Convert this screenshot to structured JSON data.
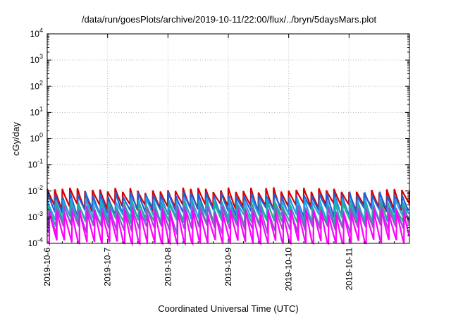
{
  "chart_data": {
    "type": "line",
    "title": "/data/run/goesPlots/archive/2019-10-11/22:00/flux/../bryn/5daysMars.plot",
    "xlabel": "Coordinated Universal Time (UTC)",
    "ylabel": "cGy/day",
    "yscale": "log",
    "ylim": [
      0.0001,
      10000
    ],
    "xlim": [
      "2019-10-06T00:00",
      "2019-10-12T00:00"
    ],
    "grid": true,
    "legend": "none",
    "x_ticks": [
      "2019-10-6",
      "2019-10-7",
      "2019-10-8",
      "2019-10-9",
      "2019-10-10",
      "2019-10-11"
    ],
    "y_ticks": [
      {
        "value": 0.0001,
        "base": "10",
        "exp": "-4"
      },
      {
        "value": 0.001,
        "base": "10",
        "exp": "-3"
      },
      {
        "value": 0.01,
        "base": "10",
        "exp": "-2"
      },
      {
        "value": 0.1,
        "base": "10",
        "exp": "-1"
      },
      {
        "value": 1,
        "base": "10",
        "exp": "0"
      },
      {
        "value": 10,
        "base": "10",
        "exp": "1"
      },
      {
        "value": 100,
        "base": "10",
        "exp": "2"
      },
      {
        "value": 1000,
        "base": "10",
        "exp": "3"
      },
      {
        "value": 10000,
        "base": "10",
        "exp": "4"
      }
    ],
    "series": [
      {
        "color": "#d40000",
        "peak": 0.011,
        "trough": 0.0026,
        "phase": 0.0
      },
      {
        "color": "#1f5fd8",
        "peak": 0.0075,
        "trough": 0.0016,
        "phase": 0.06
      },
      {
        "color": "#26a0e8",
        "peak": 0.0048,
        "trough": 0.0009,
        "phase": 0.12
      },
      {
        "color": "#20b090",
        "peak": 0.003,
        "trough": 0.0006,
        "phase": 0.18
      },
      {
        "color": "#9a4fd0",
        "peak": 0.0022,
        "trough": 0.00035,
        "phase": 0.24
      },
      {
        "color": "#ff00ff",
        "peak": 0.0016,
        "trough": 0.0001,
        "phase": 0.3
      }
    ],
    "cycle_days": 0.125
  }
}
